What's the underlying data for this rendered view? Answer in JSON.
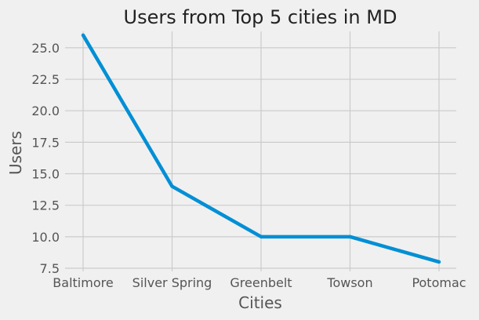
{
  "chart_data": {
    "type": "line",
    "title": "Users from Top 5 cities in MD",
    "xlabel": "Cities",
    "ylabel": "Users",
    "categories": [
      "Baltimore",
      "Silver Spring",
      "Greenbelt",
      "Towson",
      "Potomac"
    ],
    "series": [
      {
        "name": "Users",
        "values": [
          26,
          14,
          10,
          10,
          8
        ],
        "color": "#008fd5"
      }
    ],
    "ylim": [
      7.5,
      26.3
    ],
    "yticks": [
      7.5,
      10.0,
      12.5,
      15.0,
      17.5,
      20.0,
      22.5,
      25.0
    ],
    "ytick_labels": [
      "7.5",
      "10.0",
      "12.5",
      "15.0",
      "17.5",
      "20.0",
      "22.5",
      "25.0"
    ],
    "grid": true,
    "background": "#f0f0f0",
    "grid_color": "#cbcbcb"
  }
}
